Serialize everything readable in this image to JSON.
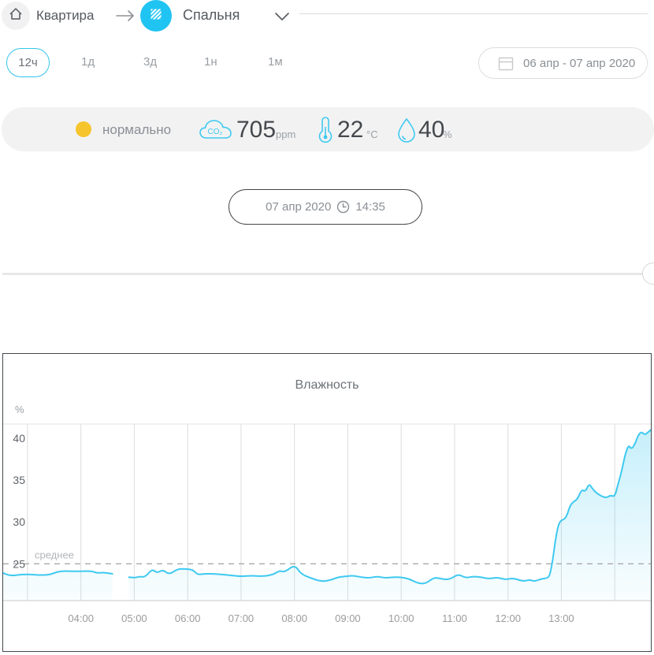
{
  "breadcrumb": {
    "home_icon": "home-icon",
    "home_label": "Квартира",
    "separator_icon": "arrow-right-icon",
    "room_icon": "room-blanket-icon",
    "room_label": "Спальня",
    "expander_icon": "chevron-down-icon"
  },
  "tabs": {
    "items": [
      {
        "label": "12ч",
        "active": true
      },
      {
        "label": "1д",
        "active": false
      },
      {
        "label": "3д",
        "active": false
      },
      {
        "label": "1н",
        "active": false
      },
      {
        "label": "1м",
        "active": false
      }
    ]
  },
  "date_range": {
    "icon": "calendar-icon",
    "label": "06 апр - 07 апр 2020"
  },
  "status": {
    "state_label": "нормально",
    "state_color": "#f6c52e",
    "co2": {
      "icon": "co2-cloud-icon",
      "value": "705",
      "unit": "ppm"
    },
    "temperature": {
      "icon": "thermometer-icon",
      "value": "22",
      "unit": "°C"
    },
    "humidity": {
      "icon": "droplet-icon",
      "value": "40",
      "unit": "%"
    }
  },
  "timeline": {
    "date": "07 апр 2020",
    "clock_icon": "clock-icon",
    "time": "14:35"
  },
  "colors": {
    "accent": "#35c4ea",
    "line": "#3ec9f0",
    "panel_border": "#43474b"
  },
  "chart_data": {
    "type": "area",
    "title": "Влажность",
    "ylabel": "%",
    "xlabel": "",
    "x_unit": "hour-of-day",
    "xlim": [
      2.544,
      14.676
    ],
    "ylim": [
      20.6,
      41.7
    ],
    "yticks": [
      25,
      30,
      35,
      40
    ],
    "x_gridlines": [
      3,
      4,
      5,
      6,
      7,
      8,
      9,
      10,
      11,
      12,
      13,
      14
    ],
    "xticks": [
      {
        "value": 4,
        "label": "04:00"
      },
      {
        "value": 5,
        "label": "05:00"
      },
      {
        "value": 6,
        "label": "06:00"
      },
      {
        "value": 7,
        "label": "07:00"
      },
      {
        "value": 8,
        "label": "08:00"
      },
      {
        "value": 9,
        "label": "09:00"
      },
      {
        "value": 10,
        "label": "10:00"
      },
      {
        "value": 11,
        "label": "11:00"
      },
      {
        "value": 12,
        "label": "12:00"
      },
      {
        "value": 13,
        "label": "13:00"
      }
    ],
    "average": {
      "value": 25.0,
      "label": "среднее"
    },
    "grid": true,
    "legend": "none",
    "series": [
      {
        "name": "Влажность",
        "color": "#3ec9f0",
        "segments": [
          [
            [
              2.544,
              23.9
            ],
            [
              2.62,
              23.7
            ],
            [
              2.72,
              23.6
            ],
            [
              2.85,
              23.7
            ],
            [
              3.0,
              23.75
            ],
            [
              3.12,
              23.7
            ],
            [
              3.25,
              23.65
            ],
            [
              3.42,
              23.7
            ],
            [
              3.55,
              24.05
            ],
            [
              3.7,
              24.15
            ],
            [
              3.85,
              24.1
            ],
            [
              4.0,
              24.1
            ],
            [
              4.1,
              24.15
            ],
            [
              4.22,
              24.1
            ],
            [
              4.3,
              23.9
            ],
            [
              4.42,
              23.95
            ],
            [
              4.5,
              23.9
            ],
            [
              4.59,
              23.8
            ]
          ],
          [
            [
              4.9,
              23.4
            ],
            [
              5.0,
              23.3
            ],
            [
              5.1,
              23.5
            ],
            [
              5.2,
              23.4
            ],
            [
              5.34,
              24.4
            ],
            [
              5.42,
              23.9
            ],
            [
              5.54,
              24.3
            ],
            [
              5.65,
              23.7
            ],
            [
              5.81,
              24.4
            ],
            [
              5.95,
              24.4
            ],
            [
              6.1,
              24.3
            ],
            [
              6.18,
              23.7
            ],
            [
              6.3,
              23.8
            ],
            [
              6.5,
              23.8
            ],
            [
              6.7,
              23.7
            ],
            [
              6.85,
              23.6
            ],
            [
              7.0,
              23.5
            ],
            [
              7.2,
              23.6
            ],
            [
              7.4,
              23.5
            ],
            [
              7.6,
              23.7
            ],
            [
              7.72,
              24.2
            ],
            [
              7.82,
              24.0
            ],
            [
              8.0,
              24.9
            ],
            [
              8.12,
              23.8
            ],
            [
              8.3,
              23.3
            ],
            [
              8.5,
              22.9
            ],
            [
              8.65,
              23.0
            ],
            [
              8.82,
              23.4
            ],
            [
              8.95,
              23.5
            ],
            [
              9.1,
              23.6
            ],
            [
              9.25,
              23.4
            ],
            [
              9.4,
              23.3
            ],
            [
              9.55,
              23.5
            ],
            [
              9.7,
              23.3
            ],
            [
              9.85,
              23.4
            ],
            [
              10.0,
              23.4
            ],
            [
              10.15,
              23.2
            ],
            [
              10.3,
              22.7
            ],
            [
              10.45,
              22.6
            ],
            [
              10.62,
              23.4
            ],
            [
              10.75,
              23.2
            ],
            [
              10.9,
              23.1
            ],
            [
              11.07,
              23.8
            ],
            [
              11.2,
              23.3
            ],
            [
              11.35,
              23.5
            ],
            [
              11.5,
              23.4
            ],
            [
              11.65,
              23.2
            ],
            [
              11.8,
              23.4
            ],
            [
              11.95,
              23.1
            ],
            [
              12.1,
              23.3
            ],
            [
              12.28,
              22.9
            ],
            [
              12.4,
              23.1
            ],
            [
              12.5,
              22.9
            ],
            [
              12.62,
              23.2
            ],
            [
              12.75,
              23.3
            ],
            [
              12.79,
              23.8
            ],
            [
              12.84,
              25.5
            ],
            [
              12.88,
              27.5
            ],
            [
              12.94,
              29.6
            ],
            [
              12.99,
              30.2
            ],
            [
              13.05,
              30.3
            ],
            [
              13.1,
              30.7
            ],
            [
              13.16,
              31.9
            ],
            [
              13.22,
              32.4
            ],
            [
              13.3,
              32.7
            ],
            [
              13.38,
              33.9
            ],
            [
              13.45,
              33.6
            ],
            [
              13.52,
              34.6
            ],
            [
              13.58,
              34.0
            ],
            [
              13.65,
              33.5
            ],
            [
              13.72,
              33.2
            ],
            [
              13.78,
              33.0
            ],
            [
              13.85,
              32.9
            ],
            [
              13.92,
              33.2
            ],
            [
              14.0,
              33.0
            ],
            [
              14.06,
              34.5
            ],
            [
              14.12,
              35.8
            ],
            [
              14.2,
              38.2
            ],
            [
              14.26,
              39.2
            ],
            [
              14.31,
              38.7
            ],
            [
              14.37,
              39.2
            ],
            [
              14.44,
              40.4
            ],
            [
              14.5,
              40.8
            ],
            [
              14.56,
              40.4
            ],
            [
              14.62,
              40.7
            ],
            [
              14.676,
              41.0
            ]
          ]
        ]
      }
    ]
  }
}
